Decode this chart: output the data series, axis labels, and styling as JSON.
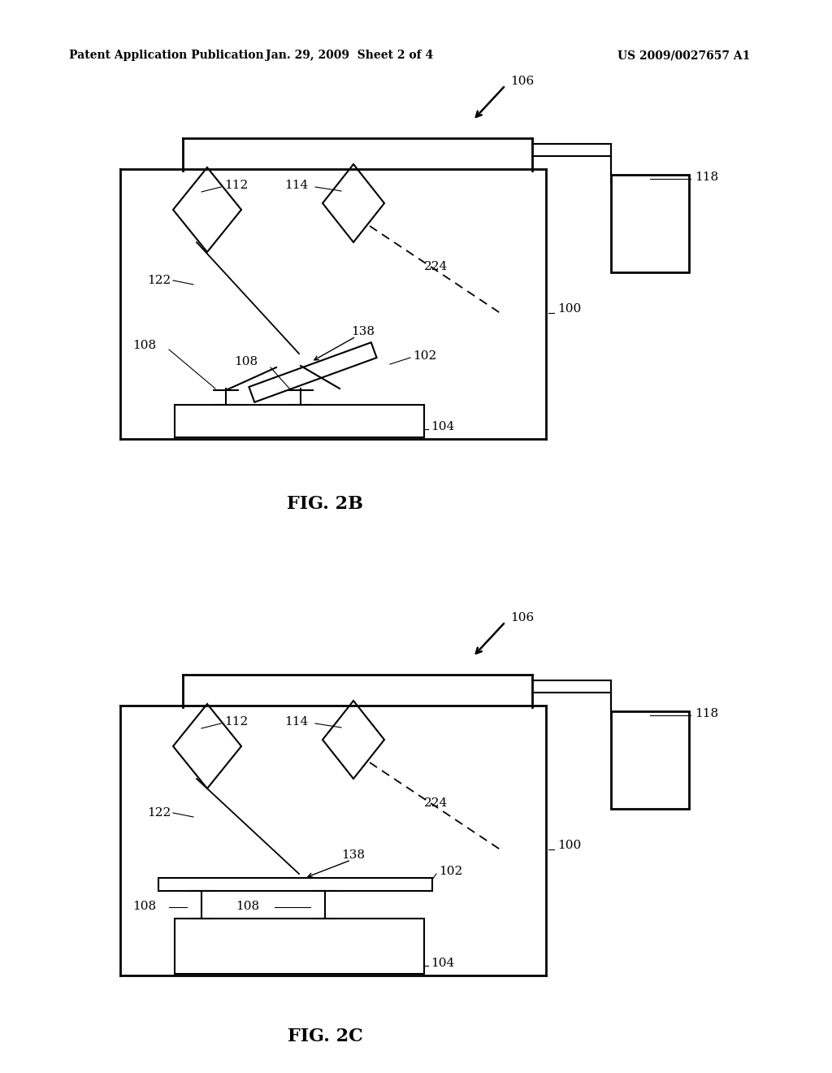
{
  "bg_color": "#ffffff",
  "header_left": "Patent Application Publication",
  "header_mid": "Jan. 29, 2009  Sheet 2 of 4",
  "header_right": "US 2009/0027657 A1",
  "fig2b_label": "FIG. 2B",
  "fig2c_label": "FIG. 2C"
}
